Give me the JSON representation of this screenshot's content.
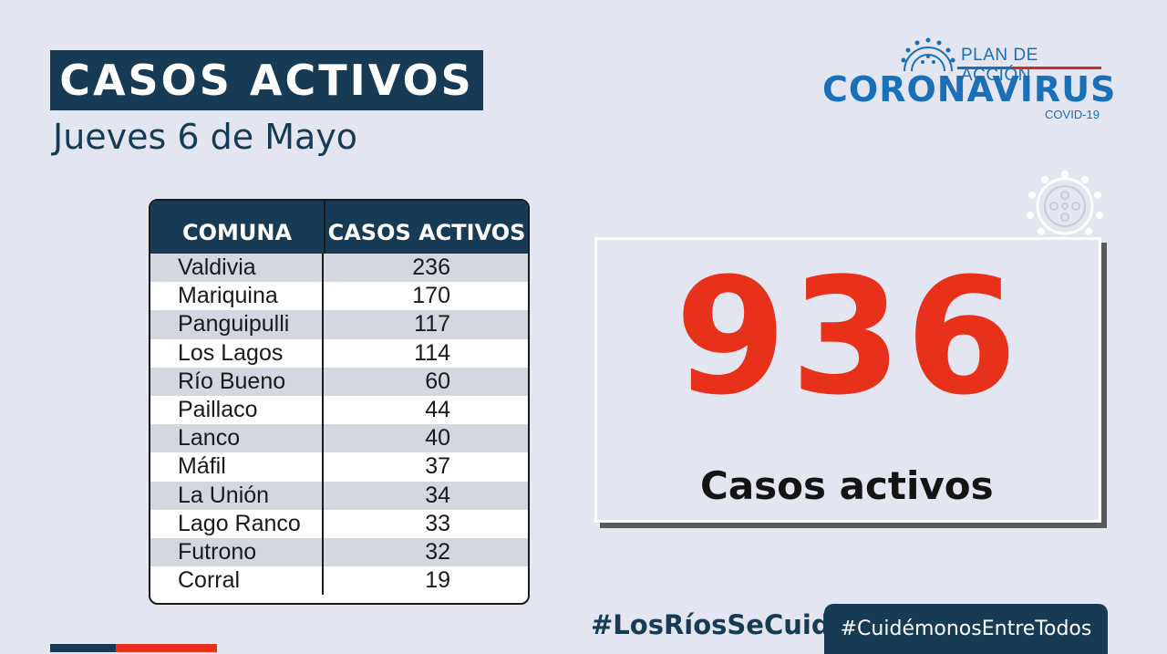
{
  "header": {
    "title": "CASOS ACTIVOS",
    "date": "Jueves 6 de Mayo"
  },
  "logo": {
    "plan": "PLAN DE ACCIÓN",
    "name": "CORONAVIRUS",
    "sub": "COVID-19",
    "icon": "virus-icon"
  },
  "table": {
    "headers": [
      "COMUNA",
      "CASOS ACTIVOS"
    ],
    "rows": [
      {
        "comuna": "Valdivia",
        "casos": "236"
      },
      {
        "comuna": "Mariquina",
        "casos": "170"
      },
      {
        "comuna": "Panguipulli",
        "casos": "117"
      },
      {
        "comuna": "Los Lagos",
        "casos": "114"
      },
      {
        "comuna": "Río Bueno",
        "casos": "60"
      },
      {
        "comuna": "Paillaco",
        "casos": "44"
      },
      {
        "comuna": "Lanco",
        "casos": "40"
      },
      {
        "comuna": "Máfil",
        "casos": "37"
      },
      {
        "comuna": "La Unión",
        "casos": "34"
      },
      {
        "comuna": "Lago Ranco",
        "casos": "33"
      },
      {
        "comuna": "Futrono",
        "casos": "32"
      },
      {
        "comuna": "Corral",
        "casos": "19"
      }
    ]
  },
  "summary": {
    "total": "936",
    "label": "Casos activos"
  },
  "footer": {
    "hashtag_1": "#LosRíosSeCuida",
    "hashtag_2": "#CuidémonosEntreTodos"
  },
  "colors": {
    "navy": "#173a55",
    "red": "#e8311b",
    "logo_blue": "#1b6fb8",
    "background": "#e3e6f1"
  }
}
